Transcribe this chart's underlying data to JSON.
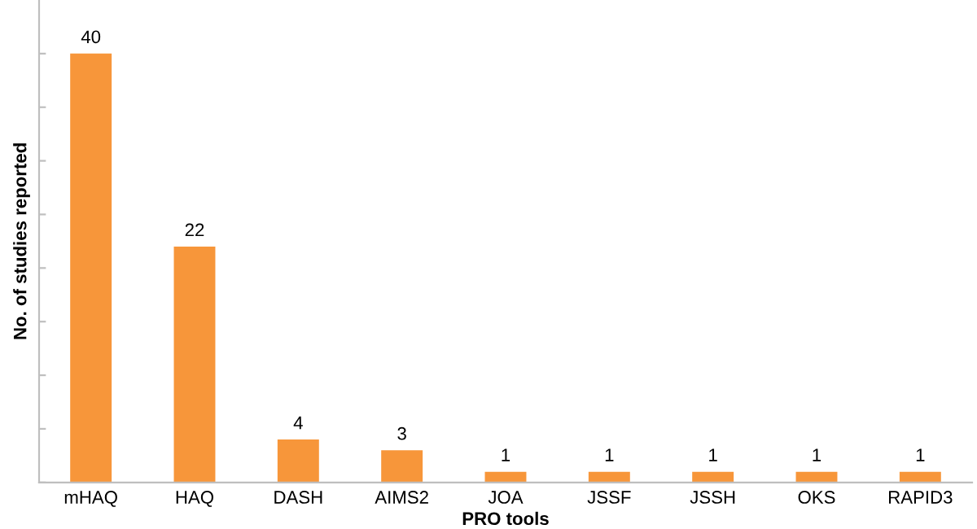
{
  "chart_data": {
    "type": "bar",
    "xlabel": "PRO tools",
    "ylabel": "No. of studies reported",
    "categories": [
      "mHAQ",
      "HAQ",
      "DASH",
      "AIMS2",
      "JOA",
      "JSSF",
      "JSSH",
      "OKS",
      "RAPID3"
    ],
    "values": [
      40,
      22,
      4,
      3,
      1,
      1,
      1,
      1,
      1
    ],
    "color": "#f7963a",
    "data_labels": true,
    "ylim": [
      0,
      45
    ],
    "yticks": [
      {
        "value": 0,
        "label": null
      },
      {
        "value": 5,
        "label": null
      },
      {
        "value": 10,
        "label": null
      },
      {
        "value": 15,
        "label": null
      },
      {
        "value": 20,
        "label": null
      },
      {
        "value": 25,
        "label": null
      },
      {
        "value": 30,
        "label": null
      },
      {
        "value": 35,
        "label": null
      },
      {
        "value": 40,
        "label": null
      }
    ],
    "tick_labels": "x",
    "grid": false,
    "legend": false
  }
}
